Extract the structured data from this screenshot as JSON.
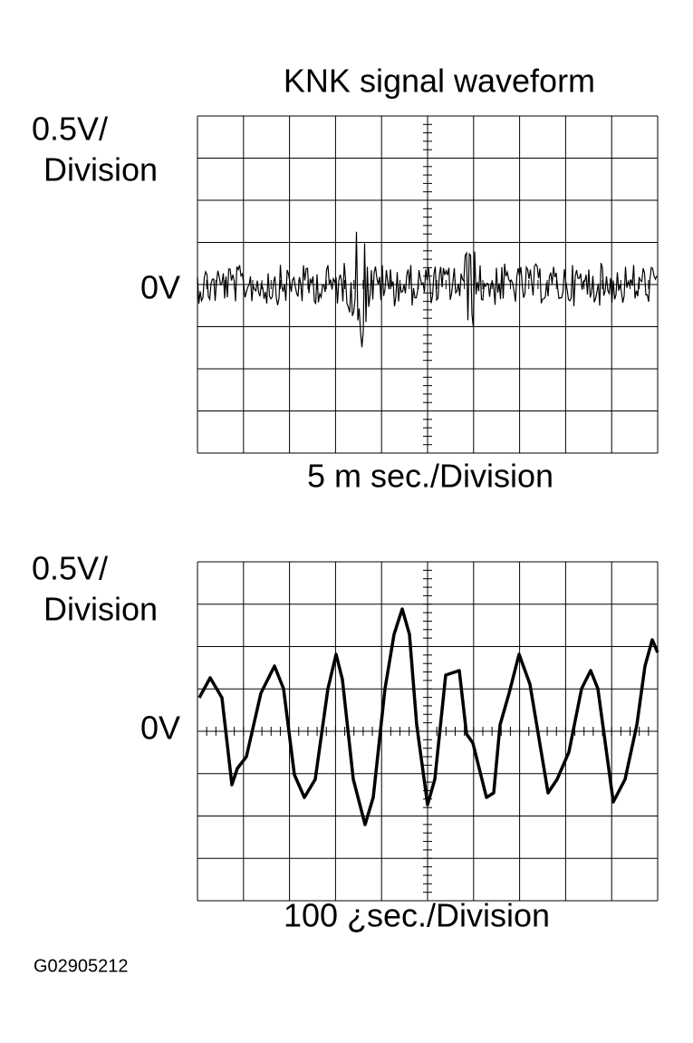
{
  "title": "KNK signal waveform",
  "scopes": [
    {
      "y_scale": "0.5V/",
      "y_scale_unit": "Division",
      "zero_label": "0V",
      "time_scale": "5 m sec./Division"
    },
    {
      "y_scale": "0.5V/",
      "y_scale_unit": "Division",
      "zero_label": "0V",
      "time_scale": "100 ¿sec./Division"
    }
  ],
  "figure_id": "G02905212"
}
